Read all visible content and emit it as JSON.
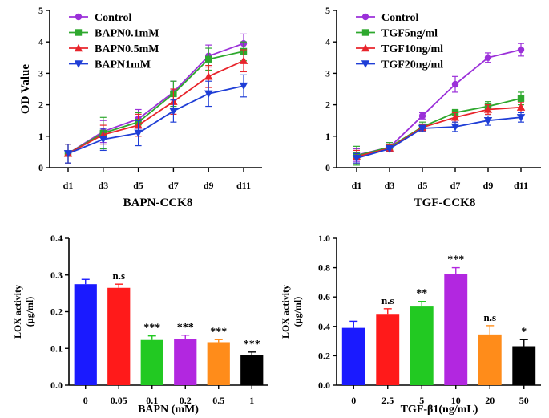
{
  "chart_data": [
    {
      "type": "line",
      "title": "BAPN-CCK8",
      "xlabel": "BAPN-CCK8",
      "ylabel": "OD Value",
      "categories": [
        "d1",
        "d3",
        "d5",
        "d7",
        "d9",
        "d11"
      ],
      "ylim": [
        0,
        5
      ],
      "yticks": [
        "0",
        "1",
        "2",
        "3",
        "4",
        "5"
      ],
      "series": [
        {
          "name": "Control",
          "color": "#9b30d9",
          "marker": "circle",
          "values": [
            0.45,
            1.15,
            1.55,
            2.4,
            3.55,
            3.95
          ],
          "errors": [
            0.3,
            0.35,
            0.3,
            0.35,
            0.35,
            0.3
          ]
        },
        {
          "name": "BAPN0.1mM",
          "color": "#2ea82e",
          "marker": "square",
          "values": [
            0.45,
            1.1,
            1.45,
            2.35,
            3.45,
            3.7
          ],
          "errors": [
            0.3,
            0.5,
            0.3,
            0.4,
            0.35,
            0.3
          ]
        },
        {
          "name": "BAPN0.5mM",
          "color": "#e8242b",
          "marker": "triangle-up",
          "values": [
            0.45,
            1.05,
            1.35,
            2.1,
            2.9,
            3.4
          ],
          "errors": [
            0.3,
            0.3,
            0.35,
            0.4,
            0.35,
            0.35
          ]
        },
        {
          "name": "BAPN1mM",
          "color": "#1f3ed6",
          "marker": "triangle-down",
          "values": [
            0.45,
            0.9,
            1.1,
            1.8,
            2.35,
            2.6
          ],
          "errors": [
            0.3,
            0.35,
            0.4,
            0.35,
            0.4,
            0.35
          ]
        }
      ]
    },
    {
      "type": "line",
      "title": "TGF-CCK8",
      "xlabel": "TGF-CCK8",
      "ylabel": "",
      "categories": [
        "d1",
        "d3",
        "d5",
        "d7",
        "d9",
        "d11"
      ],
      "ylim": [
        0,
        5
      ],
      "yticks": [
        "0",
        "1",
        "2",
        "3",
        "4",
        "5"
      ],
      "series": [
        {
          "name": "Control",
          "color": "#9b30d9",
          "marker": "circle",
          "values": [
            0.4,
            0.65,
            1.65,
            2.65,
            3.5,
            3.75
          ],
          "errors": [
            0.2,
            0.15,
            0.1,
            0.25,
            0.15,
            0.2
          ]
        },
        {
          "name": "TGF5ng/ml",
          "color": "#2ea82e",
          "marker": "square",
          "values": [
            0.38,
            0.65,
            1.3,
            1.75,
            1.95,
            2.2
          ],
          "errors": [
            0.3,
            0.15,
            0.15,
            0.1,
            0.15,
            0.2
          ]
        },
        {
          "name": "TGF10ng/ml",
          "color": "#e8242b",
          "marker": "triangle-up",
          "values": [
            0.35,
            0.62,
            1.28,
            1.6,
            1.85,
            1.92
          ],
          "errors": [
            0.2,
            0.1,
            0.1,
            0.15,
            0.15,
            0.15
          ]
        },
        {
          "name": "TGF20ng/ml",
          "color": "#1f3ed6",
          "marker": "triangle-down",
          "values": [
            0.3,
            0.6,
            1.25,
            1.3,
            1.5,
            1.6
          ],
          "errors": [
            0.15,
            0.1,
            0.1,
            0.15,
            0.15,
            0.15
          ]
        }
      ]
    },
    {
      "type": "bar",
      "title": "",
      "xlabel": "BAPN (mM)",
      "ylabel": "LOX activity\n(μg/ml)",
      "ylabel_lines": [
        "LOX activity",
        "(μg/ml)"
      ],
      "categories": [
        "0",
        "0.05",
        "0.1",
        "0.2",
        "0.5",
        "1"
      ],
      "values": [
        0.275,
        0.265,
        0.123,
        0.125,
        0.117,
        0.083
      ],
      "errors": [
        0.013,
        0.01,
        0.011,
        0.011,
        0.007,
        0.007
      ],
      "colors": [
        "#1a1aff",
        "#ff1a1a",
        "#22c922",
        "#b227e0",
        "#ff8c1a",
        "#000000"
      ],
      "significance": [
        "",
        "n.s",
        "***",
        "***",
        "***",
        "***"
      ],
      "ylim": [
        0,
        0.4
      ],
      "yticks": [
        "0.0",
        "0.1",
        "0.2",
        "0.3",
        "0.4"
      ]
    },
    {
      "type": "bar",
      "title": "",
      "xlabel": "TGF-β1(ng/mL)",
      "ylabel": "LOX activity\n(μg/ml)",
      "ylabel_lines": [
        "LOX activity",
        "(μg/ml)"
      ],
      "categories": [
        "0",
        "2.5",
        "5",
        "10",
        "20",
        "50"
      ],
      "values": [
        0.39,
        0.485,
        0.535,
        0.755,
        0.345,
        0.265
      ],
      "errors": [
        0.045,
        0.035,
        0.035,
        0.045,
        0.06,
        0.045
      ],
      "colors": [
        "#1a1aff",
        "#ff1a1a",
        "#22c922",
        "#b227e0",
        "#ff8c1a",
        "#000000"
      ],
      "significance": [
        "",
        "n.s",
        "**",
        "***",
        "n.s",
        "*"
      ],
      "ylim": [
        0,
        1.0
      ],
      "yticks": [
        "0.0",
        "0.2",
        "0.4",
        "0.6",
        "0.8",
        "1.0"
      ]
    }
  ]
}
